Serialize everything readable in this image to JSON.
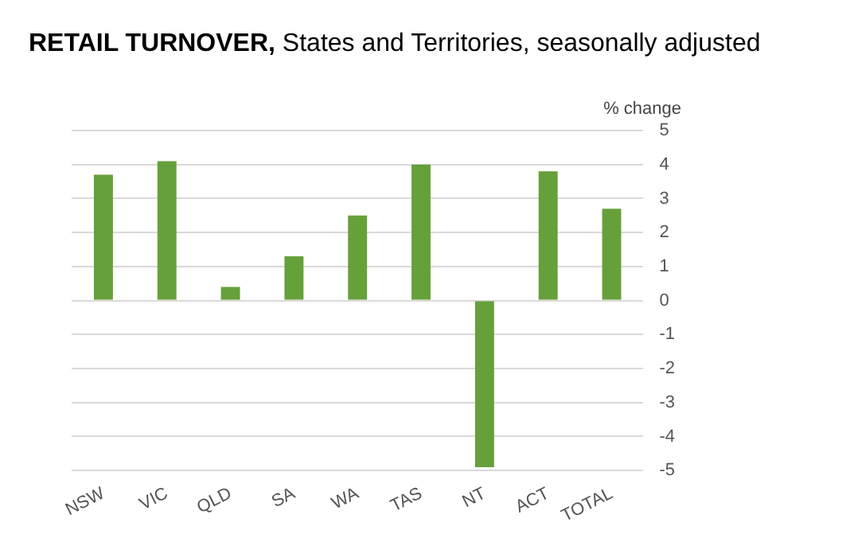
{
  "chart_data": {
    "type": "bar",
    "title": "RETAIL TURNOVER,",
    "subtitle": "States and Territories, seasonally adjusted",
    "ylabel": "% change",
    "categories": [
      "NSW",
      "VIC",
      "QLD",
      "SA",
      "WA",
      "TAS",
      "NT",
      "ACT",
      "TOTAL"
    ],
    "values": [
      3.7,
      4.1,
      0.4,
      1.3,
      2.5,
      4.0,
      -4.9,
      3.8,
      2.7
    ],
    "color": "#66a03a",
    "ylim": [
      -5,
      5
    ],
    "yticks": [
      -5,
      -4,
      -3,
      -2,
      -1,
      0,
      1,
      2,
      3,
      4,
      5
    ],
    "grid": "y",
    "legend": false
  }
}
